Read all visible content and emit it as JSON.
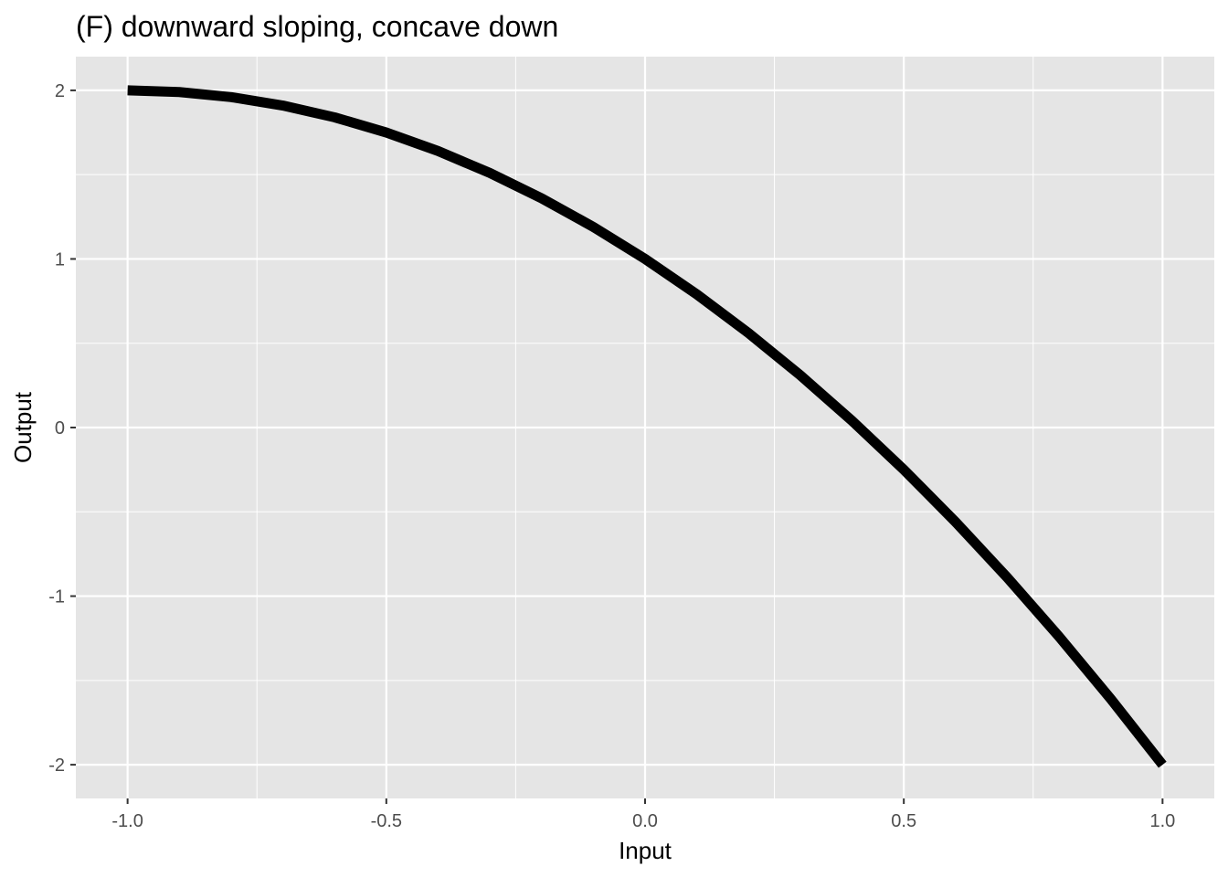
{
  "chart_data": {
    "type": "line",
    "title": "(F) downward sloping, concave down",
    "xlabel": "Input",
    "ylabel": "Output",
    "xlim": [
      -1.1,
      1.1
    ],
    "ylim": [
      -2.2,
      2.2
    ],
    "x_ticks": [
      -1.0,
      -0.5,
      0.0,
      0.5,
      1.0
    ],
    "x_tick_labels": [
      "-1.0",
      "-0.5",
      "0.0",
      "0.5",
      "1.0"
    ],
    "y_ticks": [
      -2,
      -1,
      0,
      1,
      2
    ],
    "y_tick_labels": [
      "-2",
      "-1",
      "0",
      "1",
      "2"
    ],
    "grid": true,
    "legend": "none",
    "panel_background": "#e5e5e5",
    "grid_color": "#ffffff",
    "line_color": "#000000",
    "series": [
      {
        "x": [
          -1.0,
          -0.9,
          -0.8,
          -0.7,
          -0.6,
          -0.5,
          -0.4,
          -0.3,
          -0.2,
          -0.1,
          0.0,
          0.1,
          0.2,
          0.3,
          0.4,
          0.5,
          0.6,
          0.7,
          0.8,
          0.9,
          1.0
        ],
        "y": [
          2.0,
          1.99,
          1.96,
          1.91,
          1.84,
          1.75,
          1.64,
          1.51,
          1.36,
          1.19,
          1.0,
          0.79,
          0.56,
          0.31,
          0.04,
          -0.25,
          -0.56,
          -0.89,
          -1.24,
          -1.61,
          -2.0
        ]
      }
    ]
  }
}
